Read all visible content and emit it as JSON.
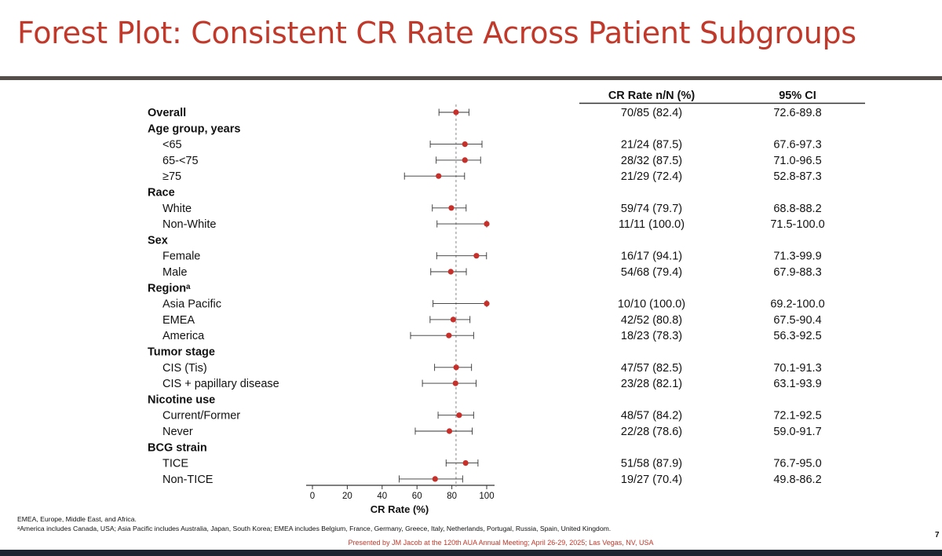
{
  "title": "Forest Plot: Consistent CR Rate Across Patient Subgroups",
  "colors": {
    "title": "#c0392b",
    "marker": "#c62f2a",
    "ci_line": "#333333",
    "axis": "#333333",
    "reference_line": "#888888",
    "footer_text": "#c0392b"
  },
  "table_headers": {
    "rate": "CR Rate n/N (%)",
    "ci": "95% CI"
  },
  "chart_data": {
    "type": "forest",
    "xlabel": "CR Rate (%)",
    "xlim": [
      0,
      100
    ],
    "xticks": [
      "0",
      "20",
      "40",
      "60",
      "80",
      "100"
    ],
    "reference_line": 82.4,
    "rows": [
      {
        "label": "Overall",
        "header": true,
        "estimate": 82.4,
        "lower": 72.6,
        "upper": 89.8,
        "rate": "70/85 (82.4)",
        "ci": "72.6-89.8"
      },
      {
        "label": "Age group, years",
        "header": true
      },
      {
        "label": "<65",
        "estimate": 87.5,
        "lower": 67.6,
        "upper": 97.3,
        "rate": "21/24 (87.5)",
        "ci": "67.6-97.3"
      },
      {
        "label": "65-<75",
        "estimate": 87.5,
        "lower": 71.0,
        "upper": 96.5,
        "rate": "28/32 (87.5)",
        "ci": "71.0-96.5"
      },
      {
        "label": "≥75",
        "estimate": 72.4,
        "lower": 52.8,
        "upper": 87.3,
        "rate": "21/29 (72.4)",
        "ci": "52.8-87.3"
      },
      {
        "label": "Race",
        "header": true
      },
      {
        "label": "White",
        "estimate": 79.7,
        "lower": 68.8,
        "upper": 88.2,
        "rate": "59/74 (79.7)",
        "ci": "68.8-88.2"
      },
      {
        "label": "Non-White",
        "estimate": 100.0,
        "lower": 71.5,
        "upper": 100.0,
        "rate": "11/11 (100.0)",
        "ci": "71.5-100.0"
      },
      {
        "label": "Sex",
        "header": true
      },
      {
        "label": "Female",
        "estimate": 94.1,
        "lower": 71.3,
        "upper": 99.9,
        "rate": "16/17 (94.1)",
        "ci": "71.3-99.9"
      },
      {
        "label": "Male",
        "estimate": 79.4,
        "lower": 67.9,
        "upper": 88.3,
        "rate": "54/68 (79.4)",
        "ci": "67.9-88.3"
      },
      {
        "label": "Regionᵃ",
        "header": true
      },
      {
        "label": "Asia Pacific",
        "estimate": 100.0,
        "lower": 69.2,
        "upper": 100.0,
        "rate": "10/10 (100.0)",
        "ci": "69.2-100.0"
      },
      {
        "label": "EMEA",
        "estimate": 80.8,
        "lower": 67.5,
        "upper": 90.4,
        "rate": "42/52 (80.8)",
        "ci": "67.5-90.4"
      },
      {
        "label": "America",
        "estimate": 78.3,
        "lower": 56.3,
        "upper": 92.5,
        "rate": "18/23 (78.3)",
        "ci": "56.3-92.5"
      },
      {
        "label": "Tumor stage",
        "header": true
      },
      {
        "label": "CIS (Tis)",
        "estimate": 82.5,
        "lower": 70.1,
        "upper": 91.3,
        "rate": "47/57 (82.5)",
        "ci": "70.1-91.3"
      },
      {
        "label": "CIS + papillary disease",
        "estimate": 82.1,
        "lower": 63.1,
        "upper": 93.9,
        "rate": "23/28 (82.1)",
        "ci": "63.1-93.9"
      },
      {
        "label": "Nicotine use",
        "header": true
      },
      {
        "label": "Current/Former",
        "estimate": 84.2,
        "lower": 72.1,
        "upper": 92.5,
        "rate": "48/57 (84.2)",
        "ci": "72.1-92.5"
      },
      {
        "label": "Never",
        "estimate": 78.6,
        "lower": 59.0,
        "upper": 91.7,
        "rate": "22/28 (78.6)",
        "ci": "59.0-91.7"
      },
      {
        "label": "BCG strain",
        "header": true
      },
      {
        "label": "TICE",
        "estimate": 87.9,
        "lower": 76.7,
        "upper": 95.0,
        "rate": "51/58 (87.9)",
        "ci": "76.7-95.0"
      },
      {
        "label": "Non-TICE",
        "estimate": 70.4,
        "lower": 49.8,
        "upper": 86.2,
        "rate": "19/27 (70.4)",
        "ci": "49.8-86.2"
      }
    ]
  },
  "footnotes": {
    "abbreviations": "EMEA, Europe, Middle East, and Africa.",
    "regions": "ᵃAmerica includes Canada, USA; Asia Pacific includes Australia, Japan, South Korea; EMEA includes Belgium, France, Germany, Greece, Italy, Netherlands, Portugal, Russia, Spain, United Kingdom."
  },
  "presented_by": "Presented by JM Jacob at the 120th AUA Annual Meeting; April 26-29, 2025; Las Vegas, NV, USA",
  "page_number": "7"
}
